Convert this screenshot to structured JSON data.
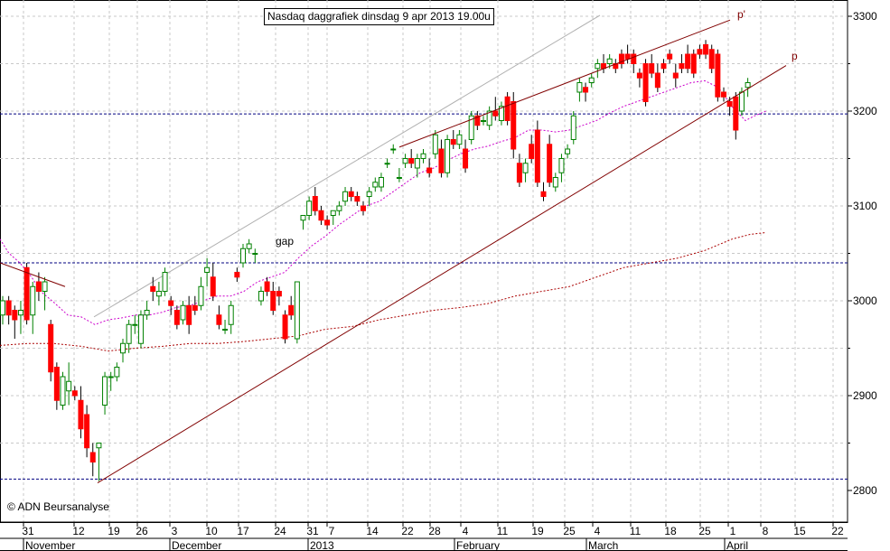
{
  "title": "Nasdaq daggrafiek dinsdag 9 apr 2013 19.00u",
  "copyright": "© ADN Beursanalyse",
  "colors": {
    "up": "#008000",
    "down": "#ff0000",
    "ma_short": "#cc00cc",
    "ma_long": "#aa0000",
    "support": "#000080",
    "trend": "#800000",
    "channel": "#b0b0b0",
    "grid": "#c8c8c8"
  },
  "chart_data": {
    "type": "candlestick",
    "title": "Nasdaq daggrafiek dinsdag 9 apr 2013 19.00u",
    "ylim": [
      2790,
      3320
    ],
    "yticks": [
      2800,
      2900,
      3000,
      3100,
      3200,
      3300
    ],
    "xticks": [
      "31",
      "12",
      "19",
      "26",
      "3",
      "10",
      "17",
      "24",
      "31",
      "7",
      "14",
      "22",
      "28",
      "4",
      "11",
      "19",
      "25",
      "4",
      "11",
      "18",
      "25",
      "1",
      "8",
      "15",
      "22"
    ],
    "months": [
      "November",
      "December",
      "2013",
      "February",
      "March",
      "April"
    ],
    "horizontal_lines": [
      2812,
      3040,
      3197
    ],
    "annotations": [
      "gap",
      "p'",
      "p"
    ],
    "candles": [
      [
        2985,
        3005,
        2975,
        3000
      ],
      [
        3000,
        3005,
        2975,
        2985
      ],
      [
        2990,
        2995,
        2960,
        2980
      ],
      [
        2985,
        3000,
        2965,
        2990
      ],
      [
        3035,
        3040,
        2975,
        2980
      ],
      [
        2985,
        3020,
        2965,
        3015
      ],
      [
        3020,
        3030,
        3000,
        3010
      ],
      [
        3010,
        3025,
        2990,
        3020
      ],
      [
        2975,
        2980,
        2915,
        2925
      ],
      [
        2930,
        2935,
        2885,
        2895
      ],
      [
        2890,
        2925,
        2885,
        2920
      ],
      [
        2905,
        2935,
        2890,
        2915
      ],
      [
        2905,
        2910,
        2895,
        2900
      ],
      [
        2895,
        2910,
        2855,
        2865
      ],
      [
        2880,
        2890,
        2835,
        2845
      ],
      [
        2840,
        2850,
        2815,
        2830
      ],
      [
        2845,
        2850,
        2810,
        2850
      ],
      [
        2890,
        2925,
        2880,
        2920
      ],
      [
        2920,
        2925,
        2905,
        2920
      ],
      [
        2920,
        2935,
        2915,
        2930
      ],
      [
        2945,
        2960,
        2935,
        2955
      ],
      [
        2955,
        2980,
        2945,
        2975
      ],
      [
        2975,
        2985,
        2965,
        2975
      ],
      [
        2955,
        2990,
        2950,
        2985
      ],
      [
        2985,
        3000,
        2980,
        2990
      ],
      [
        3015,
        3025,
        3000,
        3010
      ],
      [
        3005,
        3020,
        2995,
        3010
      ],
      [
        3010,
        3035,
        3005,
        3030
      ],
      [
        3000,
        3005,
        2985,
        2995
      ],
      [
        2990,
        2995,
        2970,
        2975
      ],
      [
        2980,
        3000,
        2975,
        2995
      ],
      [
        2995,
        3005,
        2965,
        2975
      ],
      [
        2995,
        3005,
        2985,
        2990
      ],
      [
        2995,
        3025,
        2990,
        3015
      ],
      [
        3030,
        3045,
        3015,
        3035
      ],
      [
        3025,
        3040,
        3000,
        3005
      ],
      [
        2985,
        2995,
        2970,
        2975
      ],
      [
        2970,
        2980,
        2965,
        2970
      ],
      [
        2975,
        3000,
        2965,
        2995
      ],
      [
        3030,
        3035,
        3020,
        3025
      ],
      [
        3040,
        3060,
        3035,
        3055
      ],
      [
        3055,
        3065,
        3050,
        3060
      ],
      [
        3050,
        3055,
        3040,
        3050
      ],
      [
        3000,
        3015,
        2995,
        3010
      ],
      [
        3020,
        3025,
        3005,
        3010
      ],
      [
        3010,
        3020,
        2985,
        2990
      ],
      [
        3010,
        3015,
        2995,
        3005
      ],
      [
        2985,
        2990,
        2955,
        2960
      ],
      [
        2995,
        3005,
        2980,
        2985
      ],
      [
        2960,
        3020,
        2955,
        3020
      ],
      [
        3085,
        3090,
        3075,
        3090
      ],
      [
        3090,
        3110,
        3085,
        3105
      ],
      [
        3110,
        3120,
        3090,
        3095
      ],
      [
        3095,
        3100,
        3080,
        3085
      ],
      [
        3085,
        3090,
        3075,
        3080
      ],
      [
        3090,
        3095,
        3080,
        3095
      ],
      [
        3095,
        3105,
        3090,
        3100
      ],
      [
        3105,
        3120,
        3100,
        3115
      ],
      [
        3115,
        3120,
        3105,
        3110
      ],
      [
        3110,
        3115,
        3100,
        3105
      ],
      [
        3100,
        3105,
        3090,
        3095
      ],
      [
        3110,
        3120,
        3100,
        3115
      ],
      [
        3120,
        3130,
        3115,
        3125
      ],
      [
        3120,
        3135,
        3115,
        3130
      ],
      [
        3145,
        3150,
        3140,
        3145
      ],
      [
        3160,
        3165,
        3155,
        3160
      ],
      [
        3130,
        3140,
        3125,
        3130
      ],
      [
        3145,
        3155,
        3140,
        3150
      ],
      [
        3150,
        3160,
        3140,
        3145
      ],
      [
        3140,
        3155,
        3130,
        3150
      ],
      [
        3150,
        3160,
        3145,
        3155
      ],
      [
        3140,
        3150,
        3130,
        3135
      ],
      [
        3155,
        3180,
        3150,
        3175
      ],
      [
        3160,
        3170,
        3130,
        3135
      ],
      [
        3135,
        3175,
        3130,
        3170
      ],
      [
        3170,
        3180,
        3160,
        3165
      ],
      [
        3165,
        3180,
        3160,
        3175
      ],
      [
        3160,
        3170,
        3135,
        3140
      ],
      [
        3170,
        3200,
        3165,
        3195
      ],
      [
        3195,
        3200,
        3180,
        3185
      ],
      [
        3190,
        3195,
        3185,
        3190
      ],
      [
        3185,
        3205,
        3180,
        3200
      ],
      [
        3200,
        3215,
        3190,
        3195
      ],
      [
        3190,
        3210,
        3185,
        3205
      ],
      [
        3215,
        3220,
        3185,
        3190
      ],
      [
        3210,
        3220,
        3150,
        3160
      ],
      [
        3145,
        3155,
        3120,
        3125
      ],
      [
        3135,
        3150,
        3125,
        3145
      ],
      [
        3165,
        3175,
        3145,
        3150
      ],
      [
        3180,
        3190,
        3120,
        3125
      ],
      [
        3115,
        3125,
        3105,
        3110
      ],
      [
        3165,
        3175,
        3120,
        3125
      ],
      [
        3120,
        3135,
        3115,
        3130
      ],
      [
        3135,
        3155,
        3125,
        3150
      ],
      [
        3155,
        3165,
        3150,
        3160
      ],
      [
        3170,
        3200,
        3165,
        3195
      ],
      [
        3220,
        3235,
        3210,
        3230
      ],
      [
        3225,
        3230,
        3210,
        3220
      ],
      [
        3230,
        3240,
        3225,
        3235
      ],
      [
        3245,
        3255,
        3235,
        3250
      ],
      [
        3250,
        3260,
        3240,
        3245
      ],
      [
        3250,
        3260,
        3245,
        3255
      ],
      [
        3250,
        3255,
        3240,
        3245
      ],
      [
        3260,
        3265,
        3245,
        3250
      ],
      [
        3260,
        3270,
        3250,
        3255
      ],
      [
        3260,
        3265,
        3240,
        3250
      ],
      [
        3240,
        3245,
        3225,
        3235
      ],
      [
        3250,
        3255,
        3205,
        3210
      ],
      [
        3250,
        3260,
        3235,
        3240
      ],
      [
        3240,
        3250,
        3220,
        3225
      ],
      [
        3250,
        3255,
        3240,
        3245
      ],
      [
        3260,
        3265,
        3250,
        3255
      ],
      [
        3240,
        3250,
        3225,
        3235
      ],
      [
        3250,
        3260,
        3240,
        3245
      ],
      [
        3260,
        3270,
        3240,
        3245
      ],
      [
        3260,
        3265,
        3235,
        3240
      ],
      [
        3265,
        3270,
        3255,
        3260
      ],
      [
        3270,
        3275,
        3255,
        3260
      ],
      [
        3265,
        3270,
        3240,
        3245
      ],
      [
        3260,
        3265,
        3210,
        3215
      ],
      [
        3220,
        3225,
        3210,
        3215
      ],
      [
        3210,
        3215,
        3195,
        3205
      ],
      [
        3215,
        3220,
        3170,
        3180
      ],
      [
        3200,
        3225,
        3195,
        3220
      ],
      [
        3225,
        3235,
        3215,
        3230
      ]
    ],
    "ma_short": [
      [
        0,
        3065
      ],
      [
        10,
        3050
      ],
      [
        22,
        3040
      ],
      [
        35,
        3025
      ],
      [
        45,
        3010
      ],
      [
        60,
        2998
      ],
      [
        75,
        2985
      ],
      [
        90,
        2983
      ],
      [
        105,
        2975
      ],
      [
        120,
        2980
      ],
      [
        135,
        2982
      ],
      [
        150,
        2985
      ],
      [
        165,
        2985
      ],
      [
        180,
        2988
      ],
      [
        195,
        2993
      ],
      [
        210,
        2995
      ],
      [
        225,
        3000
      ],
      [
        240,
        3005
      ],
      [
        255,
        3005
      ],
      [
        270,
        3010
      ],
      [
        285,
        3020
      ],
      [
        300,
        3025
      ],
      [
        315,
        3030
      ],
      [
        330,
        3045
      ],
      [
        345,
        3058
      ],
      [
        360,
        3068
      ],
      [
        375,
        3080
      ],
      [
        390,
        3090
      ],
      [
        405,
        3100
      ],
      [
        420,
        3105
      ],
      [
        435,
        3115
      ],
      [
        450,
        3125
      ],
      [
        465,
        3135
      ],
      [
        480,
        3140
      ],
      [
        495,
        3148
      ],
      [
        510,
        3155
      ],
      [
        525,
        3160
      ],
      [
        540,
        3163
      ],
      [
        555,
        3168
      ],
      [
        570,
        3172
      ],
      [
        585,
        3180
      ],
      [
        600,
        3180
      ],
      [
        615,
        3178
      ],
      [
        630,
        3180
      ],
      [
        645,
        3185
      ],
      [
        660,
        3190
      ],
      [
        675,
        3198
      ],
      [
        690,
        3205
      ],
      [
        705,
        3210
      ],
      [
        720,
        3215
      ],
      [
        735,
        3220
      ],
      [
        750,
        3225
      ],
      [
        765,
        3230
      ],
      [
        780,
        3232
      ],
      [
        795,
        3225
      ],
      [
        810,
        3205
      ],
      [
        825,
        3190
      ],
      [
        835,
        3195
      ],
      [
        848,
        3200
      ]
    ],
    "ma_long": [
      [
        0,
        2953
      ],
      [
        30,
        2955
      ],
      [
        60,
        2955
      ],
      [
        90,
        2952
      ],
      [
        120,
        2947
      ],
      [
        150,
        2950
      ],
      [
        180,
        2952
      ],
      [
        210,
        2955
      ],
      [
        240,
        2955
      ],
      [
        270,
        2957
      ],
      [
        300,
        2960
      ],
      [
        330,
        2963
      ],
      [
        360,
        2970
      ],
      [
        390,
        2973
      ],
      [
        420,
        2980
      ],
      [
        450,
        2985
      ],
      [
        480,
        2990
      ],
      [
        510,
        2993
      ],
      [
        540,
        2997
      ],
      [
        570,
        3005
      ],
      [
        600,
        3010
      ],
      [
        630,
        3015
      ],
      [
        660,
        3025
      ],
      [
        690,
        3035
      ],
      [
        720,
        3040
      ],
      [
        750,
        3045
      ],
      [
        780,
        3053
      ],
      [
        810,
        3065
      ],
      [
        830,
        3070
      ],
      [
        848,
        3072
      ]
    ],
    "trend_lines": [
      [
        [
          0,
          3040
        ],
        [
          72,
          3015
        ]
      ],
      [
        [
          108,
          2808
        ],
        [
          870,
          3248
        ]
      ],
      [
        [
          442,
          3162
        ],
        [
          808,
          3296
        ]
      ]
    ],
    "channel_line": [
      [
        104,
        2983
      ],
      [
        664,
        3301
      ]
    ]
  }
}
